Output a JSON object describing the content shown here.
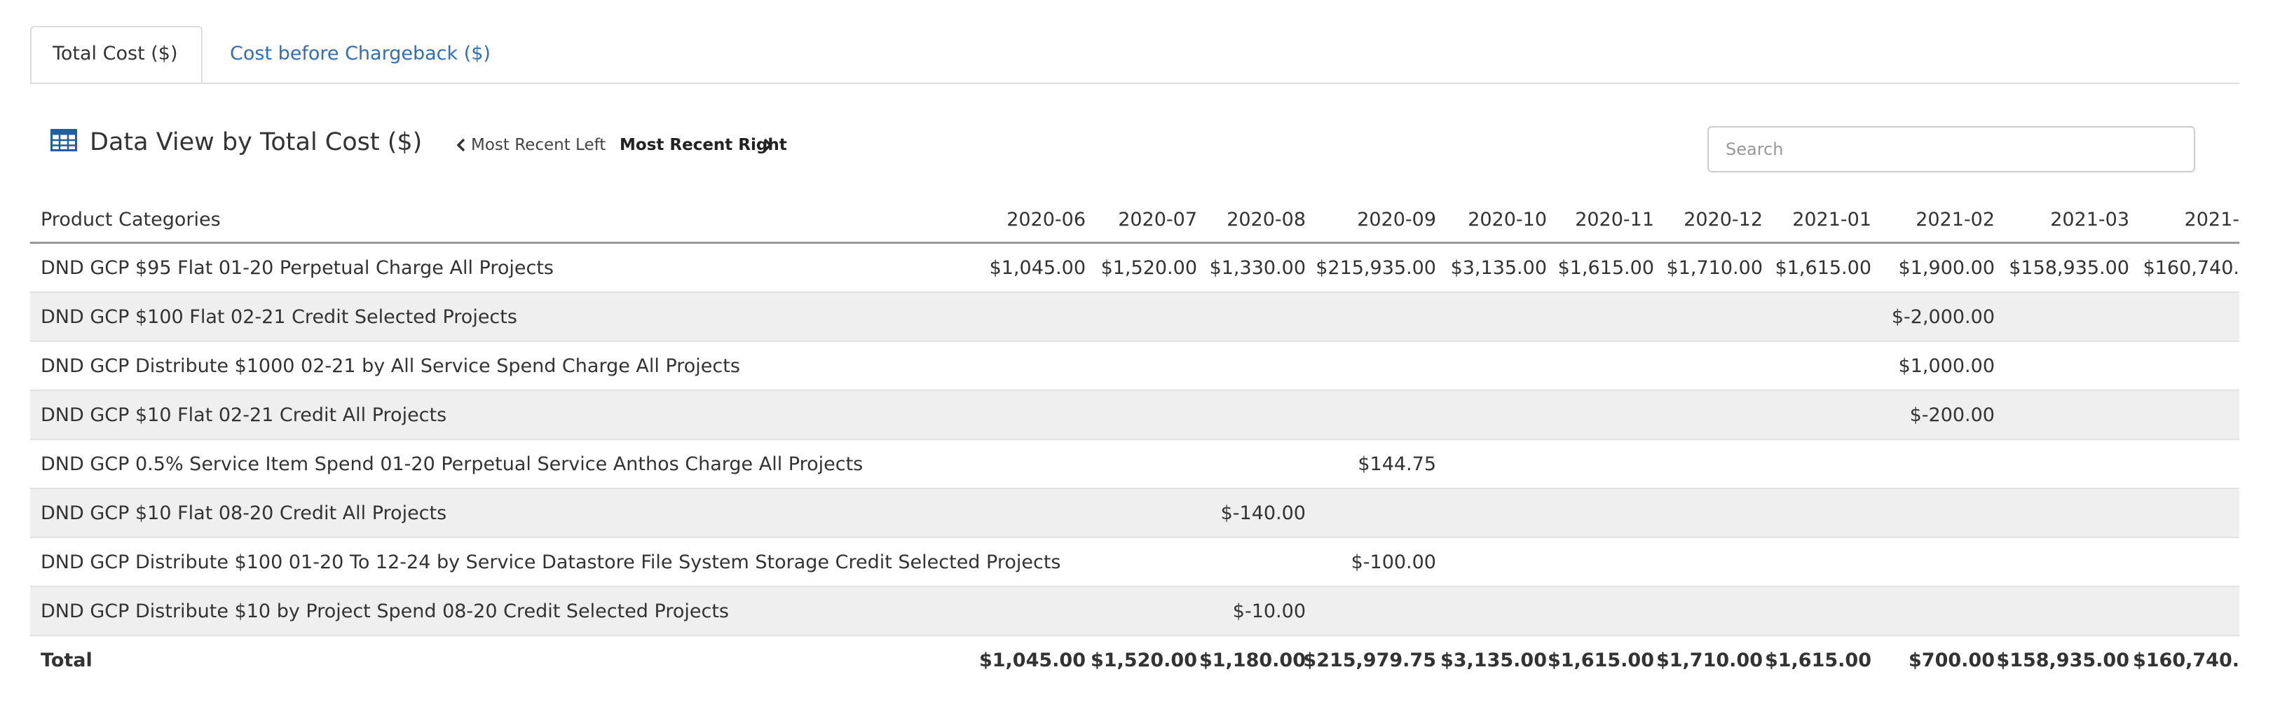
{
  "tabs": [
    "Total Cost ($)",
    "Cost before Chargeback ($)"
  ],
  "header": {
    "title": "Data View by Total Cost ($)",
    "left_link": "Most Recent Left",
    "right_link": "Most Recent Right",
    "search_placeholder": "Search"
  },
  "table": {
    "columns": [
      "Product Categories",
      "2020-06",
      "2020-07",
      "2020-08",
      "2020-09",
      "2020-10",
      "2020-11",
      "2020-12",
      "2021-01",
      "2021-02",
      "2021-03",
      "2021-"
    ],
    "rows": [
      [
        "DND GCP $95 Flat 01-20 Perpetual Charge All Projects",
        "$1,045.00",
        "$1,520.00",
        "$1,330.00",
        "$215,935.00",
        "$3,135.00",
        "$1,615.00",
        "$1,710.00",
        "$1,615.00",
        "$1,900.00",
        "$158,935.00",
        "$160,740."
      ],
      [
        "DND GCP $100 Flat 02-21 Credit Selected Projects",
        null,
        null,
        null,
        null,
        null,
        null,
        null,
        null,
        "$-2,000.00",
        null,
        null
      ],
      [
        "DND GCP Distribute $1000 02-21 by All Service Spend Charge All Projects",
        null,
        null,
        null,
        null,
        null,
        null,
        null,
        null,
        "$1,000.00",
        null,
        null
      ],
      [
        "DND GCP $10 Flat 02-21 Credit All Projects",
        null,
        null,
        null,
        null,
        null,
        null,
        null,
        null,
        "$-200.00",
        null,
        null
      ],
      [
        "DND GCP 0.5% Service Item Spend 01-20 Perpetual Service Anthos Charge All Projects",
        null,
        null,
        null,
        "$144.75",
        null,
        null,
        null,
        null,
        null,
        null,
        null
      ],
      [
        "DND GCP $10 Flat 08-20 Credit All Projects",
        null,
        null,
        "$-140.00",
        null,
        null,
        null,
        null,
        null,
        null,
        null,
        null
      ],
      [
        "DND GCP Distribute $100 01-20 To 12-24 by Service Datastore File System Storage Credit Selected Projects",
        null,
        null,
        null,
        "$-100.00",
        null,
        null,
        null,
        null,
        null,
        null,
        null
      ],
      [
        "DND GCP Distribute $10 by Project Spend 08-20 Credit Selected Projects",
        null,
        null,
        "$-10.00",
        null,
        null,
        null,
        null,
        null,
        null,
        null,
        null
      ]
    ],
    "total": [
      "Total",
      "$1,045.00",
      "$1,520.00",
      "$1,180.00",
      "$215,979.75",
      "$3,135.00",
      "$1,615.00",
      "$1,710.00",
      "$1,615.00",
      "$700.00",
      "$158,935.00",
      "$160,740."
    ]
  }
}
